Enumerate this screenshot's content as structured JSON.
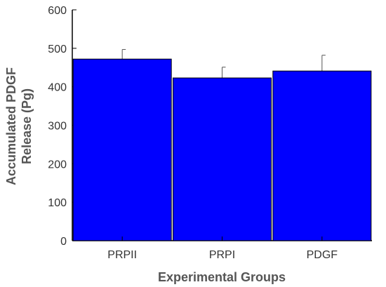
{
  "chart_data": {
    "type": "bar",
    "title": "",
    "xlabel": "Experimental Groups",
    "ylabel_lines": [
      "Accumulated PDGF",
      "Release (Pg)"
    ],
    "categories": [
      "PRPII",
      "PRPI",
      "PDGF"
    ],
    "values": [
      472,
      423,
      441
    ],
    "error_upper": [
      497,
      451,
      482
    ],
    "ylim": [
      0,
      600
    ],
    "yticks": [
      0,
      100,
      200,
      300,
      400,
      500,
      600
    ],
    "grid": false,
    "legend": "none",
    "colors": {
      "bar_fill": "#0000ff",
      "bar_stroke": "#000000",
      "axis": "#000000",
      "error_bar": "#555555"
    }
  }
}
